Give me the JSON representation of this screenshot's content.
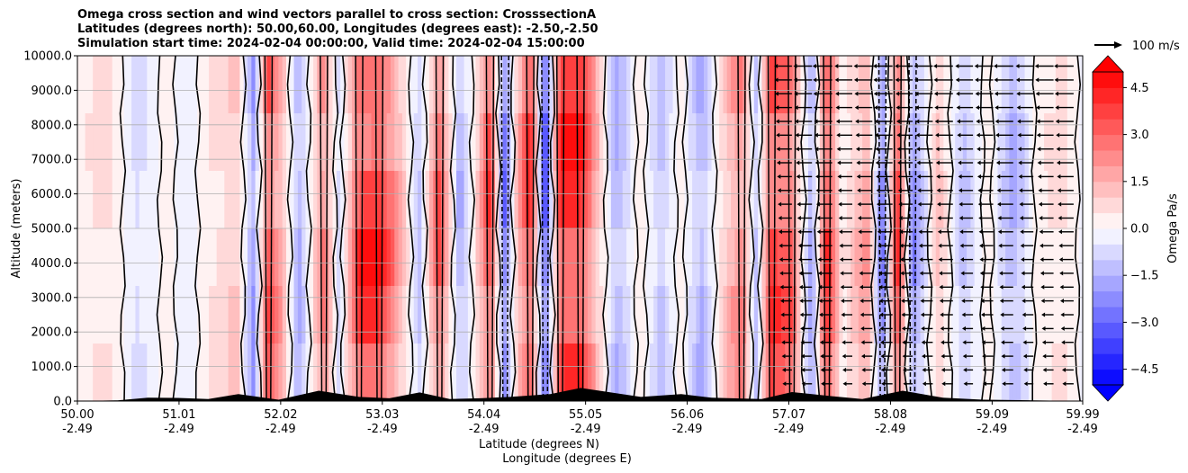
{
  "chart_data": {
    "type": "heatmap",
    "title_lines": [
      "Omega cross section and wind vectors parallel to cross section: CrosssectionA",
      "Latitudes (degrees north): 50.00,60.00, Longitudes (degrees east): -2.50,-2.50",
      "Simulation start time: 2024-02-04 00:00:00, Valid time: 2024-02-04 15:00:00"
    ],
    "ylabel": "Altitude (meters)",
    "xlabel_lines": [
      "Latitude (degrees N)",
      "Longitude (degrees E)"
    ],
    "ylim": [
      0,
      10000
    ],
    "y_ticks": [
      "0.0",
      "1000.0",
      "2000.0",
      "3000.0",
      "4000.0",
      "5000.0",
      "6000.0",
      "7000.0",
      "8000.0",
      "9000.0",
      "10000.0"
    ],
    "x_ticks": [
      {
        "lat": "50.00",
        "lon": "-2.49"
      },
      {
        "lat": "51.01",
        "lon": "-2.49"
      },
      {
        "lat": "52.02",
        "lon": "-2.49"
      },
      {
        "lat": "53.03",
        "lon": "-2.49"
      },
      {
        "lat": "54.04",
        "lon": "-2.49"
      },
      {
        "lat": "55.05",
        "lon": "-2.49"
      },
      {
        "lat": "56.06",
        "lon": "-2.49"
      },
      {
        "lat": "57.07",
        "lon": "-2.49"
      },
      {
        "lat": "58.08",
        "lon": "-2.49"
      },
      {
        "lat": "59.09",
        "lon": "-2.49"
      },
      {
        "lat": "59.99",
        "lon": "-2.49"
      }
    ],
    "grid": "horizontal",
    "colorbar": {
      "label": "Omega Pa/s",
      "range": [
        -5,
        5
      ],
      "ticks": [
        "4.5",
        "3.0",
        "1.5",
        "0.0",
        "−1.5",
        "−3.0",
        "−4.5"
      ],
      "tick_values": [
        4.5,
        3.0,
        1.5,
        0.0,
        -1.5,
        -3.0,
        -4.5
      ],
      "extend": "both",
      "colormap": "bwr"
    },
    "vector_key": {
      "label": "100 m/s"
    },
    "omega_profile": {
      "lat": [
        50.0,
        50.3,
        50.6,
        50.9,
        51.1,
        51.35,
        51.6,
        51.75,
        51.9,
        52.05,
        52.2,
        52.45,
        52.6,
        52.8,
        53.0,
        53.2,
        53.4,
        53.6,
        53.8,
        53.95,
        54.1,
        54.25,
        54.35,
        54.5,
        54.65,
        54.8,
        55.0,
        55.2,
        55.35,
        55.6,
        55.8,
        56.0,
        56.2,
        56.4,
        56.6,
        56.75,
        56.9,
        57.1,
        57.3,
        57.45,
        57.6,
        57.85,
        58.0,
        58.15,
        58.3,
        58.55,
        58.8,
        59.05,
        59.3,
        59.55,
        59.8,
        59.99
      ],
      "omega": [
        0.4,
        0.8,
        -0.8,
        0.3,
        -0.5,
        0.8,
        1.2,
        -2.5,
        4.0,
        1.5,
        -2.0,
        3.0,
        -1.0,
        4.5,
        5.0,
        2.0,
        -1.5,
        4.0,
        -2.0,
        0.5,
        4.5,
        -3.5,
        1.0,
        5.0,
        -4.5,
        5.0,
        5.0,
        1.0,
        -2.0,
        0.5,
        -1.5,
        0.5,
        -2.0,
        1.0,
        3.0,
        -1.5,
        4.5,
        3.5,
        -2.5,
        5.0,
        0.3,
        2.5,
        -3.5,
        5.0,
        -3.0,
        1.5,
        -1.5,
        0.4,
        -2.0,
        0.4,
        0.8,
        -0.3
      ]
    }
  }
}
